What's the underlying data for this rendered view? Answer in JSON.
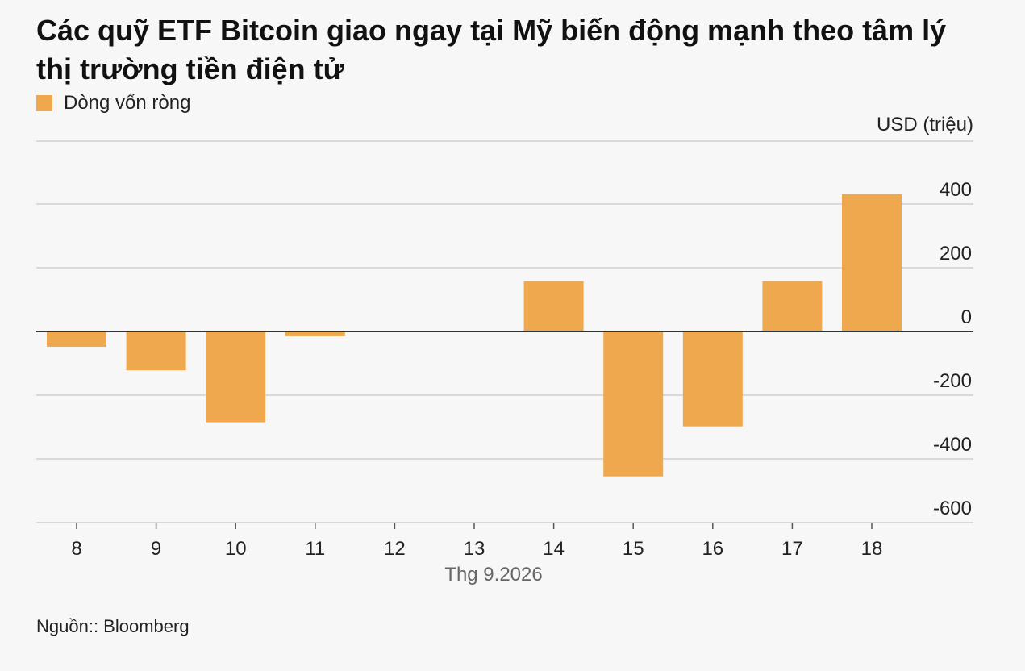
{
  "chart_data": {
    "type": "bar",
    "title": "Các quỹ ETF Bitcoin giao ngay tại Mỹ biến động mạnh theo tâm lý thị trường tiền điện tử",
    "categories": [
      "8",
      "9",
      "10",
      "11",
      "12",
      "13",
      "14",
      "15",
      "16",
      "17",
      "18"
    ],
    "series": [
      {
        "name": "Dòng vốn ròng",
        "color": "#f0a84e",
        "values": [
          -48,
          -122,
          -285,
          -15,
          0,
          0,
          158,
          -455,
          -298,
          158,
          431
        ]
      }
    ],
    "xlabel": "Thg 9.2026",
    "ylabel": "USD (triệu)",
    "ylim": [
      -600,
      600
    ],
    "yticks": [
      400,
      200,
      0,
      -200,
      -400,
      -600
    ],
    "gridlines": true,
    "legend_position": "top-left"
  },
  "source": "Nguồn:: Bloomberg"
}
